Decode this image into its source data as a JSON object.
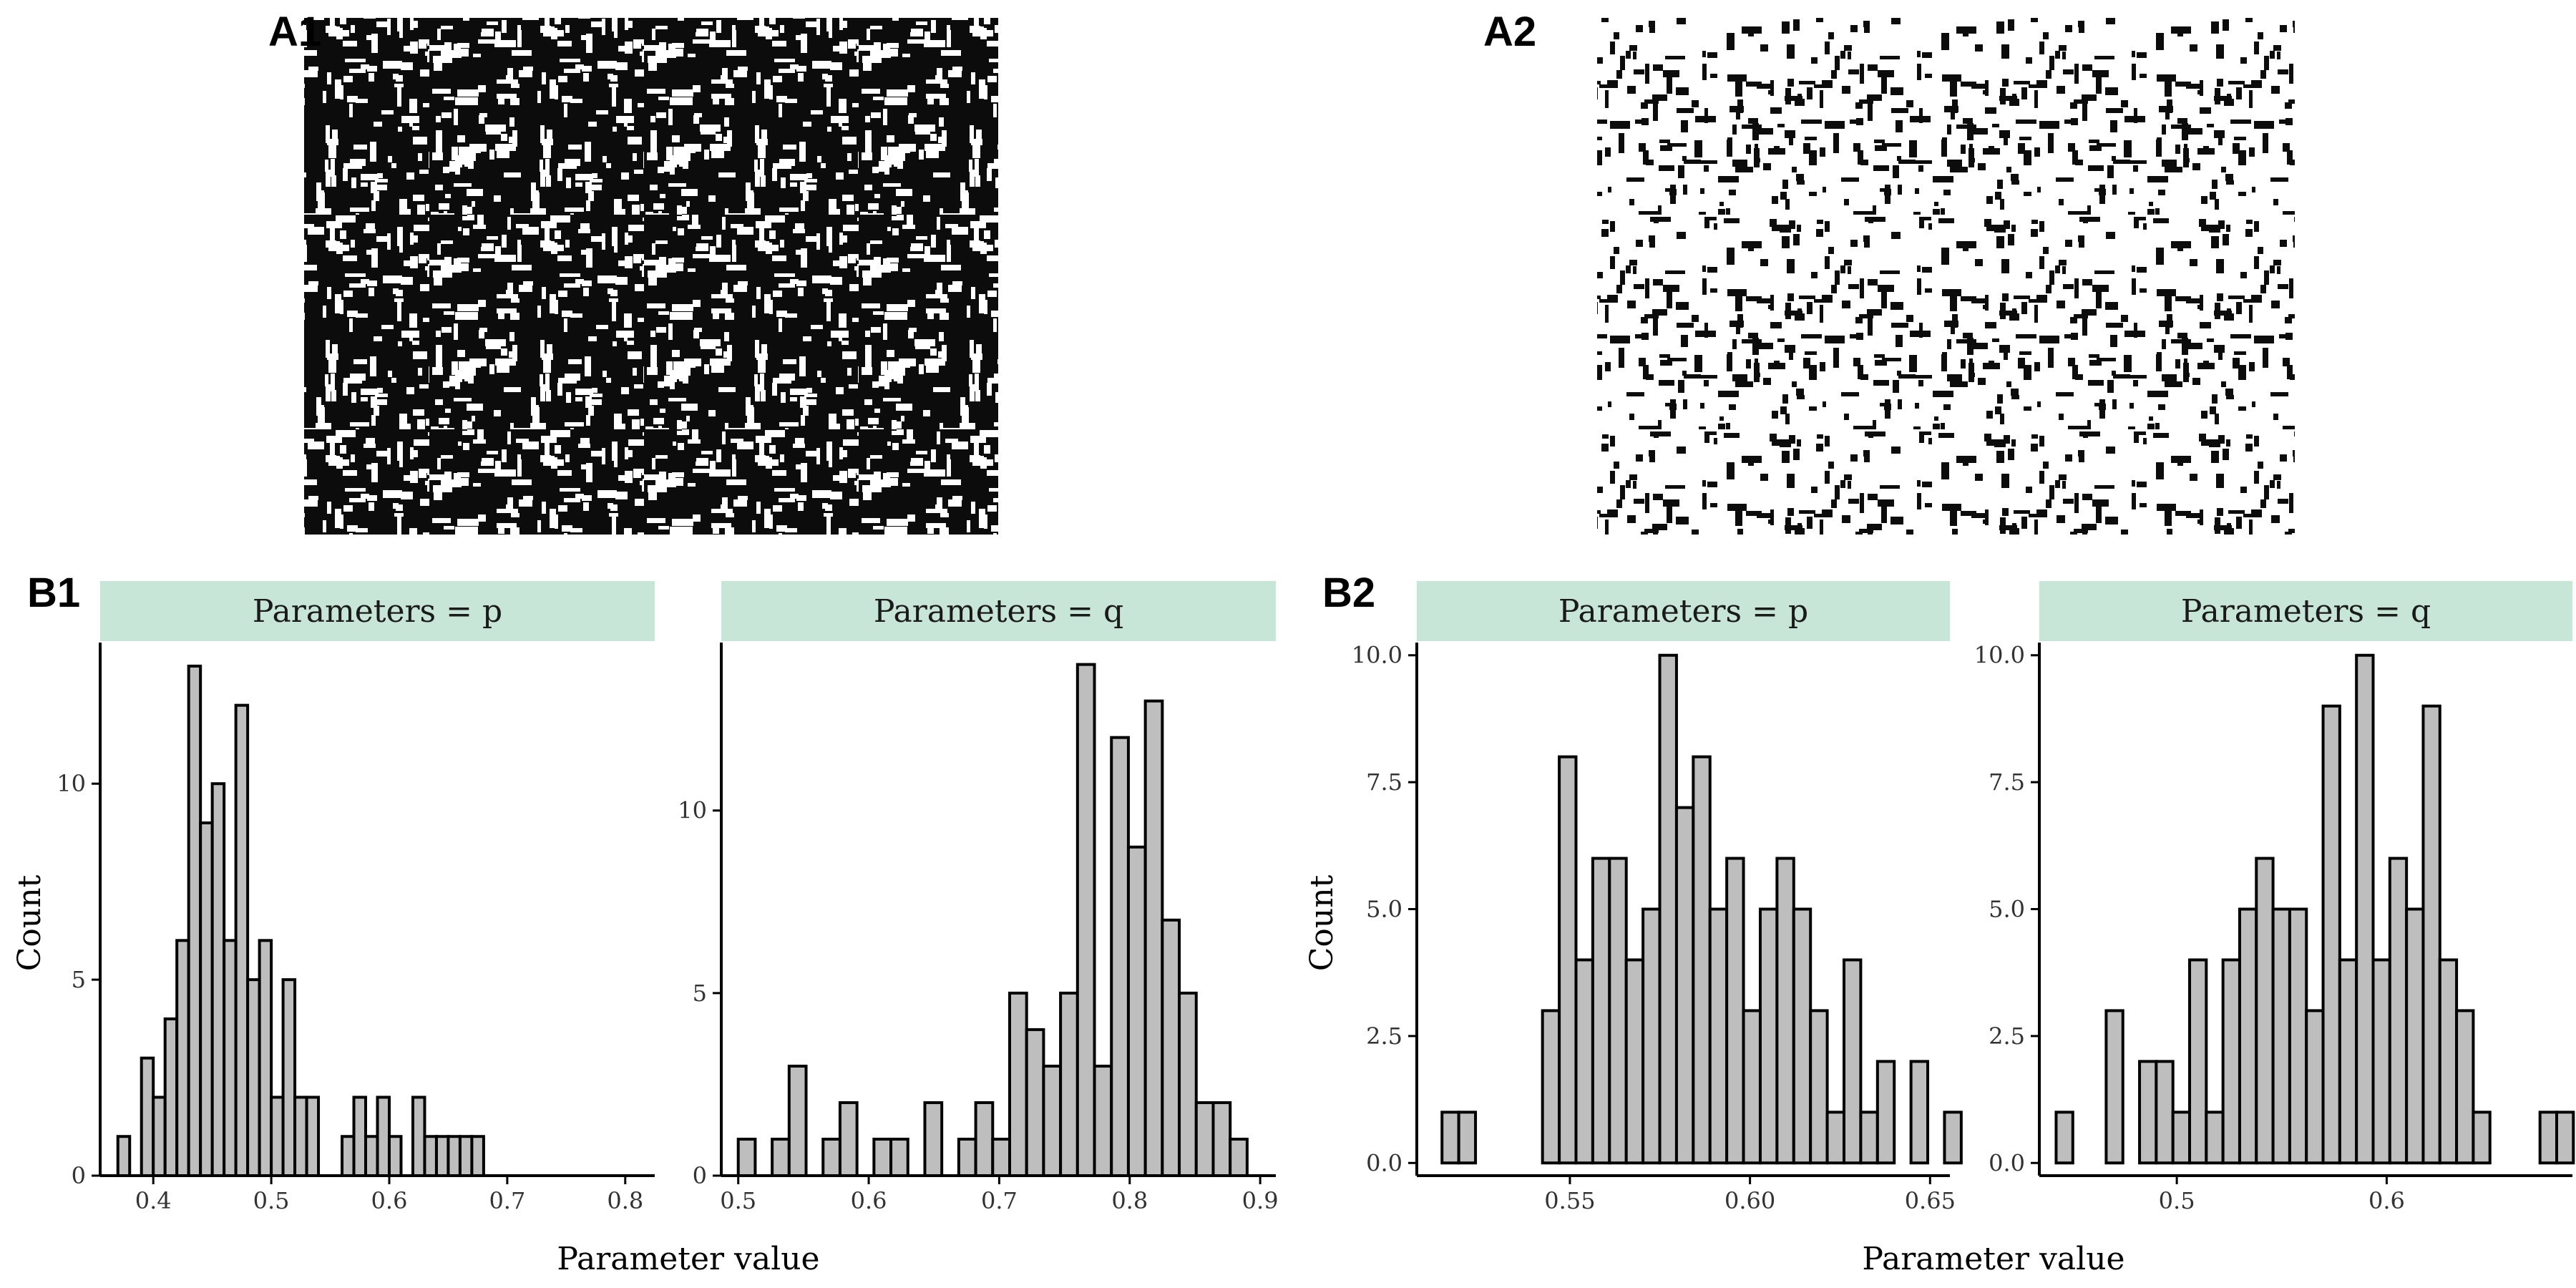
{
  "panels": {
    "A1": {
      "label": "A1"
    },
    "A2": {
      "label": "A2"
    },
    "B1": {
      "label": "B1",
      "xlabel": "Parameter value",
      "ylabel": "Count"
    },
    "B2": {
      "label": "B2",
      "xlabel": "Parameter value",
      "ylabel": "Count"
    }
  },
  "colors": {
    "strip_fill": "#c8e6d8",
    "bar_fill": "#bebebe",
    "bar_stroke": "#000000",
    "axis": "#000000",
    "raster_black": "#0c0c0c",
    "raster_white": "#ffffff"
  },
  "chart_data": [
    {
      "id": "B1-p",
      "type": "bar",
      "panel": "B1",
      "facet": "Parameters = p",
      "xlim": [
        0.355,
        0.825
      ],
      "ylim": [
        0,
        13.6
      ],
      "xticks": [
        0.4,
        0.5,
        0.6,
        0.7,
        0.8
      ],
      "xtick_labels": [
        "0.4",
        "0.5",
        "0.6",
        "0.7",
        "0.8"
      ],
      "yticks": [
        0,
        5,
        10
      ],
      "ytick_labels": [
        "0",
        "5",
        "10"
      ],
      "bin_start": 0.37,
      "bin_width": 0.01,
      "counts": [
        1,
        0,
        3,
        2,
        4,
        6,
        13,
        9,
        10,
        6,
        12,
        5,
        6,
        2,
        5,
        2,
        2,
        0,
        0,
        1,
        2,
        1,
        2,
        1,
        0,
        2,
        1,
        1,
        1,
        1,
        1
      ]
    },
    {
      "id": "B1-q",
      "type": "bar",
      "panel": "B1",
      "facet": "Parameters = q",
      "xlim": [
        0.487,
        0.912
      ],
      "ylim": [
        0,
        14.6
      ],
      "xticks": [
        0.5,
        0.6,
        0.7,
        0.8,
        0.9
      ],
      "xtick_labels": [
        "0.5",
        "0.6",
        "0.7",
        "0.8",
        "0.9"
      ],
      "yticks": [
        0,
        5,
        10
      ],
      "ytick_labels": [
        "0",
        "5",
        "10"
      ],
      "bin_start": 0.5,
      "bin_width": 0.013,
      "counts": [
        1,
        0,
        1,
        3,
        0,
        1,
        2,
        0,
        1,
        1,
        0,
        2,
        0,
        1,
        2,
        1,
        5,
        4,
        3,
        5,
        14,
        3,
        12,
        9,
        13,
        7,
        5,
        2,
        2,
        1
      ]
    },
    {
      "id": "B2-p",
      "type": "bar",
      "panel": "B2",
      "facet": "Parameters = p",
      "xlim": [
        0.5075,
        0.6555
      ],
      "ylim": [
        -0.25,
        10.25
      ],
      "xticks": [
        0.55,
        0.6,
        0.65
      ],
      "xtick_labels": [
        "0.55",
        "0.60",
        "0.65"
      ],
      "yticks": [
        0,
        2.5,
        5,
        7.5,
        10
      ],
      "ytick_labels": [
        "0.0",
        "2.5",
        "5.0",
        "7.5",
        "10.0"
      ],
      "bin_start": 0.5145,
      "bin_width": 0.00465,
      "counts": [
        1,
        1,
        0,
        0,
        0,
        0,
        3,
        8,
        4,
        6,
        6,
        4,
        5,
        10,
        7,
        8,
        5,
        6,
        3,
        5,
        6,
        5,
        3,
        1,
        4,
        1,
        2,
        0,
        2,
        0,
        1
      ]
    },
    {
      "id": "B2-q",
      "type": "bar",
      "panel": "B2",
      "facet": "Parameters = q",
      "xlim": [
        0.4345,
        0.6885
      ],
      "ylim": [
        -0.25,
        10.25
      ],
      "xticks": [
        0.5,
        0.6
      ],
      "xtick_labels": [
        "0.5",
        "0.6"
      ],
      "yticks": [
        0,
        2.5,
        5,
        7.5,
        10
      ],
      "ytick_labels": [
        "0.0",
        "2.5",
        "5.0",
        "7.5",
        "10.0"
      ],
      "bin_start": 0.4425,
      "bin_width": 0.00795,
      "counts": [
        1,
        0,
        0,
        3,
        0,
        2,
        2,
        1,
        4,
        1,
        4,
        5,
        6,
        5,
        5,
        3,
        9,
        4,
        10,
        4,
        6,
        5,
        9,
        4,
        3,
        1,
        0,
        0,
        0,
        1,
        1
      ]
    }
  ]
}
